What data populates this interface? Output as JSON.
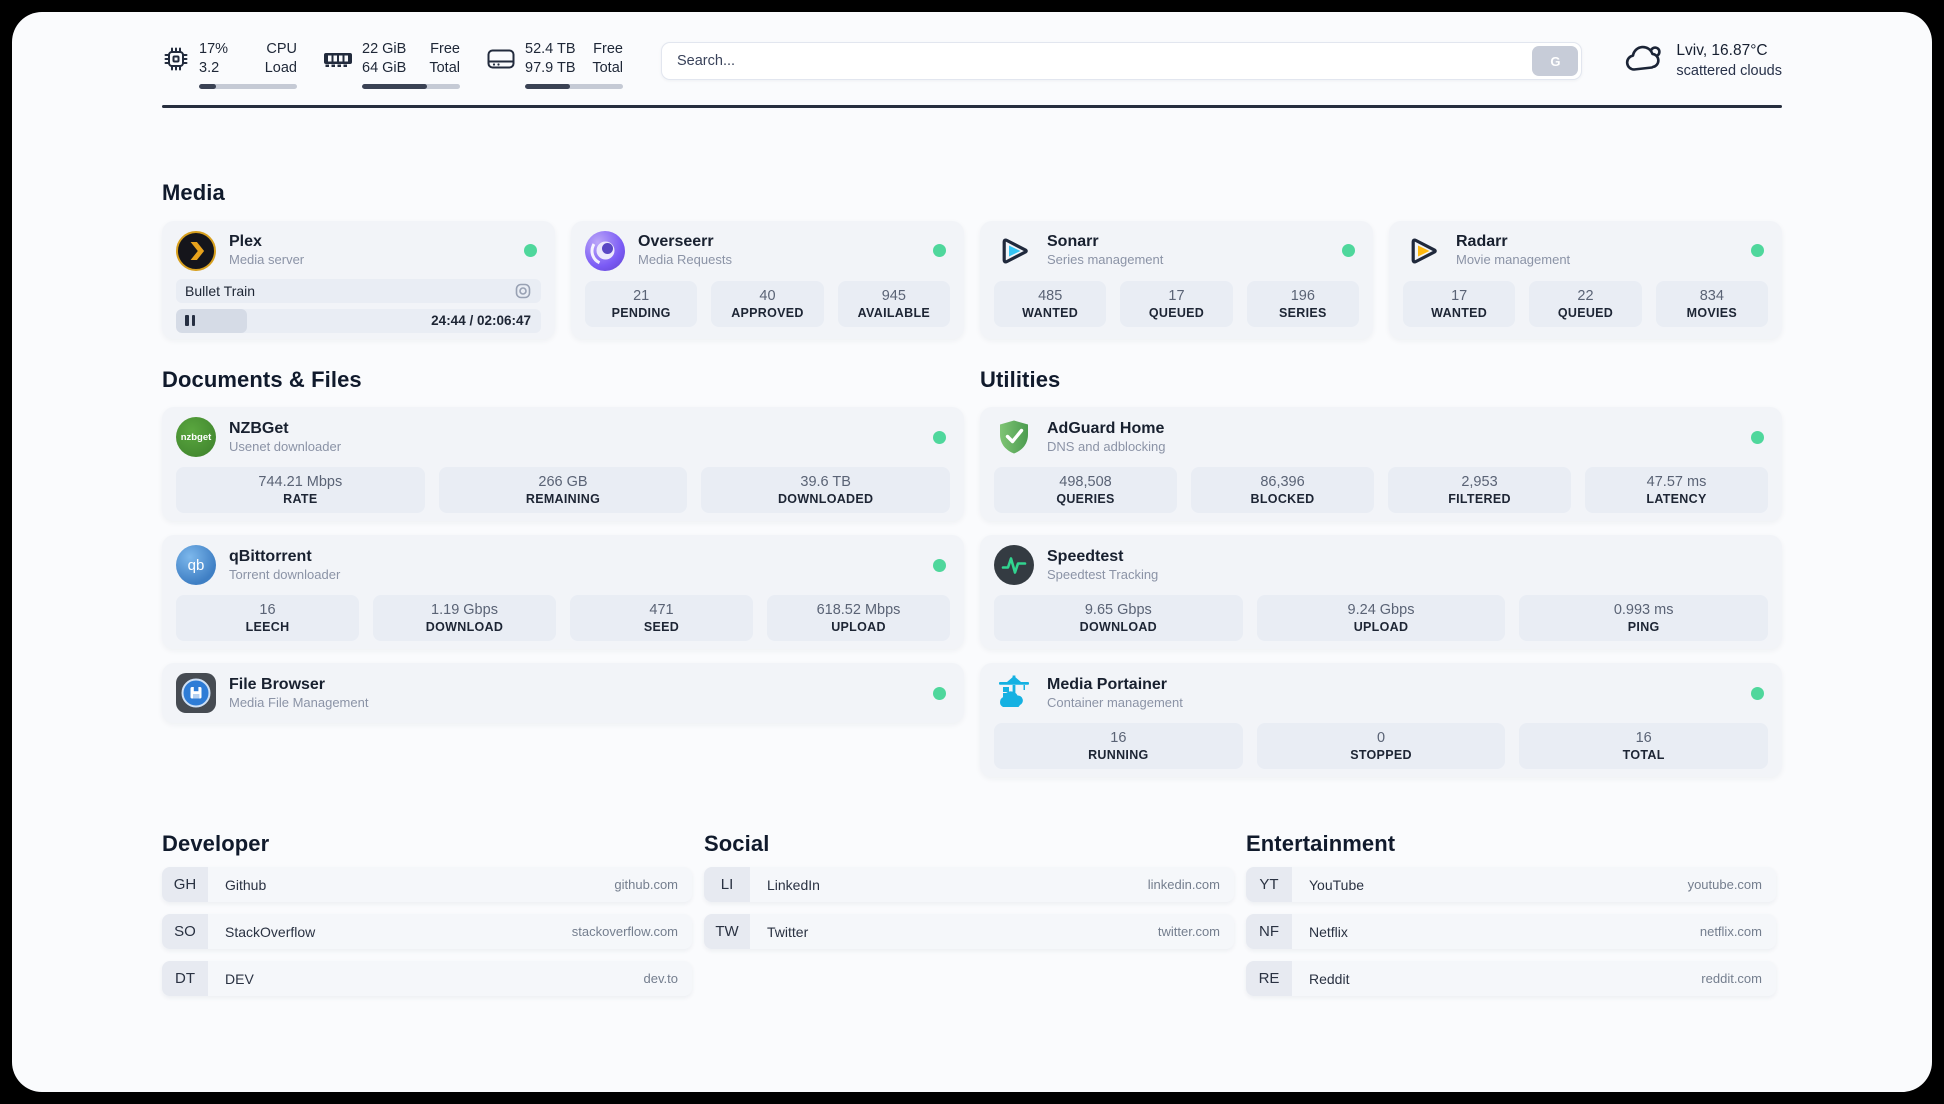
{
  "header": {
    "system_stats": [
      {
        "name": "cpu",
        "values": [
          "17%",
          "3.2"
        ],
        "labels": [
          "CPU",
          "Load"
        ],
        "progress_pct": 17
      },
      {
        "name": "memory",
        "values": [
          "22 GiB",
          "64 GiB"
        ],
        "labels": [
          "Free",
          "Total"
        ],
        "progress_pct": 66
      },
      {
        "name": "disk",
        "values": [
          "52.4 TB",
          "97.9 TB"
        ],
        "labels": [
          "Free",
          "Total"
        ],
        "progress_pct": 46
      }
    ],
    "search": {
      "placeholder": "Search...",
      "button_label": "G"
    },
    "weather": {
      "summary": "Lviv, 16.87°C",
      "condition": "scattered clouds"
    }
  },
  "sections": {
    "media": {
      "title": "Media",
      "plex": {
        "name": "Plex",
        "description": "Media server",
        "now_playing": "Bullet Train",
        "time": "24:44 / 02:06:47",
        "progress_pct": 19.5
      },
      "overseerr": {
        "name": "Overseerr",
        "description": "Media Requests",
        "stats": [
          {
            "value": "21",
            "label": "PENDING"
          },
          {
            "value": "40",
            "label": "APPROVED"
          },
          {
            "value": "945",
            "label": "AVAILABLE"
          }
        ]
      },
      "sonarr": {
        "name": "Sonarr",
        "description": "Series management",
        "stats": [
          {
            "value": "485",
            "label": "WANTED"
          },
          {
            "value": "17",
            "label": "QUEUED"
          },
          {
            "value": "196",
            "label": "SERIES"
          }
        ]
      },
      "radarr": {
        "name": "Radarr",
        "description": "Movie management",
        "stats": [
          {
            "value": "17",
            "label": "WANTED"
          },
          {
            "value": "22",
            "label": "QUEUED"
          },
          {
            "value": "834",
            "label": "MOVIES"
          }
        ]
      }
    },
    "documents": {
      "title": "Documents & Files",
      "nzbget": {
        "name": "NZBGet",
        "description": "Usenet downloader",
        "icon_text": "nzbget",
        "stats": [
          {
            "value": "744.21 Mbps",
            "label": "RATE"
          },
          {
            "value": "266 GB",
            "label": "REMAINING"
          },
          {
            "value": "39.6 TB",
            "label": "DOWNLOADED"
          }
        ]
      },
      "qbittorrent": {
        "name": "qBittorrent",
        "description": "Torrent downloader",
        "icon_text": "qb",
        "stats": [
          {
            "value": "16",
            "label": "LEECH"
          },
          {
            "value": "1.19 Gbps",
            "label": "DOWNLOAD"
          },
          {
            "value": "471",
            "label": "SEED"
          },
          {
            "value": "618.52 Mbps",
            "label": "UPLOAD"
          }
        ]
      },
      "filebrowser": {
        "name": "File Browser",
        "description": "Media File Management"
      }
    },
    "utilities": {
      "title": "Utilities",
      "adguard": {
        "name": "AdGuard Home",
        "description": "DNS and adblocking",
        "stats": [
          {
            "value": "498,508",
            "label": "QUERIES"
          },
          {
            "value": "86,396",
            "label": "BLOCKED"
          },
          {
            "value": "2,953",
            "label": "FILTERED"
          },
          {
            "value": "47.57 ms",
            "label": "LATENCY"
          }
        ]
      },
      "speedtest": {
        "name": "Speedtest",
        "description": "Speedtest Tracking",
        "stats": [
          {
            "value": "9.65 Gbps",
            "label": "DOWNLOAD"
          },
          {
            "value": "9.24 Gbps",
            "label": "UPLOAD"
          },
          {
            "value": "0.993 ms",
            "label": "PING"
          }
        ]
      },
      "portainer": {
        "name": "Media Portainer",
        "description": "Container management",
        "stats": [
          {
            "value": "16",
            "label": "RUNNING"
          },
          {
            "value": "0",
            "label": "STOPPED"
          },
          {
            "value": "16",
            "label": "TOTAL"
          }
        ]
      }
    },
    "developer": {
      "title": "Developer",
      "links": [
        {
          "abbr": "GH",
          "name": "Github",
          "url": "github.com"
        },
        {
          "abbr": "SO",
          "name": "StackOverflow",
          "url": "stackoverflow.com"
        },
        {
          "abbr": "DT",
          "name": "DEV",
          "url": "dev.to"
        }
      ]
    },
    "social": {
      "title": "Social",
      "links": [
        {
          "abbr": "LI",
          "name": "LinkedIn",
          "url": "linkedin.com"
        },
        {
          "abbr": "TW",
          "name": "Twitter",
          "url": "twitter.com"
        }
      ]
    },
    "entertainment": {
      "title": "Entertainment",
      "links": [
        {
          "abbr": "YT",
          "name": "YouTube",
          "url": "youtube.com"
        },
        {
          "abbr": "NF",
          "name": "Netflix",
          "url": "netflix.com"
        },
        {
          "abbr": "RE",
          "name": "Reddit",
          "url": "reddit.com"
        }
      ]
    }
  },
  "colors": {
    "online_green": "#4fd79c",
    "plex_gold": "#e8a21c",
    "sonarr_blue": "#35c5f4",
    "radarr_amber": "#ffb90f",
    "adguard_green": "#5dab58",
    "portainer_blue": "#15b1e2",
    "speedtest_pulse": "#31d490",
    "progress_dark": "#3a4254"
  }
}
